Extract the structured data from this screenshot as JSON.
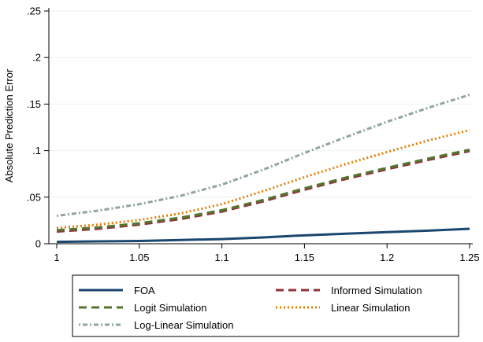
{
  "chart_data": {
    "type": "line",
    "title": "",
    "xlabel": "",
    "ylabel": "Absolute Prediction Error",
    "xlim": [
      1,
      1.25
    ],
    "ylim": [
      0,
      0.25
    ],
    "x_ticks": [
      1,
      1.05,
      1.1,
      1.15,
      1.2,
      1.25
    ],
    "x_tick_labels": [
      "1",
      "1.05",
      "1.1",
      "1.15",
      "1.2",
      "1.25"
    ],
    "y_ticks": [
      0,
      0.05,
      0.1,
      0.15,
      0.2,
      0.25
    ],
    "y_tick_labels": [
      "0",
      ".05",
      ".1",
      ".15",
      ".2",
      ".25"
    ],
    "grid": "horizontal",
    "legend_position": "bottom",
    "x": [
      1,
      1.025,
      1.05,
      1.075,
      1.1,
      1.125,
      1.15,
      1.175,
      1.2,
      1.225,
      1.25
    ],
    "series": [
      {
        "name": "FOA",
        "color": "#1a476f",
        "dash": "solid",
        "values": [
          0.002,
          0.0025,
          0.003,
          0.004,
          0.005,
          0.0068,
          0.009,
          0.0108,
          0.0125,
          0.014,
          0.016
        ]
      },
      {
        "name": "Informed Simulation",
        "color": "#90353b",
        "dash": "dash",
        "values": [
          0.013,
          0.016,
          0.0205,
          0.0265,
          0.0345,
          0.0455,
          0.058,
          0.0695,
          0.08,
          0.09,
          0.0995
        ]
      },
      {
        "name": "Logit Simulation",
        "color": "#55752f",
        "dash": "dash",
        "values": [
          0.0145,
          0.0175,
          0.022,
          0.028,
          0.036,
          0.047,
          0.0595,
          0.071,
          0.0815,
          0.0915,
          0.101
        ]
      },
      {
        "name": "Linear Simulation",
        "color": "#e37e00",
        "dash": "dot",
        "values": [
          0.017,
          0.0205,
          0.0255,
          0.0325,
          0.0425,
          0.0565,
          0.0715,
          0.0855,
          0.0985,
          0.111,
          0.122
        ]
      },
      {
        "name": "Log-Linear Simulation",
        "color": "#8fa5a0",
        "dash": "dashdot",
        "values": [
          0.03,
          0.0355,
          0.0425,
          0.0515,
          0.0635,
          0.0795,
          0.0975,
          0.1145,
          0.131,
          0.146,
          0.16
        ]
      }
    ]
  }
}
